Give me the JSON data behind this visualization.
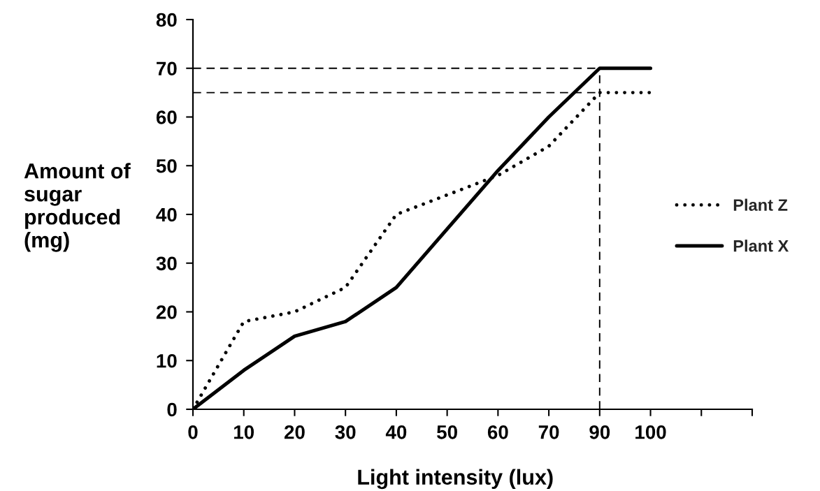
{
  "chart_data": {
    "type": "line",
    "xlabel": "Light intensity (lux)",
    "ylabel": "Amount of\nsugar\nproduced\n(mg)",
    "categories": [
      "0",
      "10",
      "20",
      "30",
      "40",
      "50",
      "60",
      "70",
      "90",
      "100",
      null,
      null
    ],
    "series": [
      {
        "name": "Plant Z",
        "color": "#000000",
        "line_style": "dotted",
        "values": [
          0,
          18,
          20,
          25,
          40,
          44,
          48,
          54,
          65,
          65,
          null,
          null
        ]
      },
      {
        "name": "Plant X",
        "color": "#000000",
        "line_style": "solid",
        "values": [
          0,
          8,
          15,
          18,
          25,
          37,
          49,
          60,
          70,
          70,
          null,
          null
        ]
      }
    ],
    "ylim": [
      0,
      80
    ],
    "yticks": [
      0,
      10,
      20,
      30,
      40,
      50,
      60,
      70,
      80
    ],
    "ref_lines": [
      {
        "axis": "y",
        "value": 70,
        "color": "#000000",
        "line_style": "dashed"
      },
      {
        "axis": "y",
        "value": 65,
        "color": "#000000",
        "line_style": "dashed"
      },
      {
        "axis": "x",
        "value": "90",
        "color": "#000000",
        "line_style": "dashed"
      }
    ],
    "legend": "right"
  }
}
